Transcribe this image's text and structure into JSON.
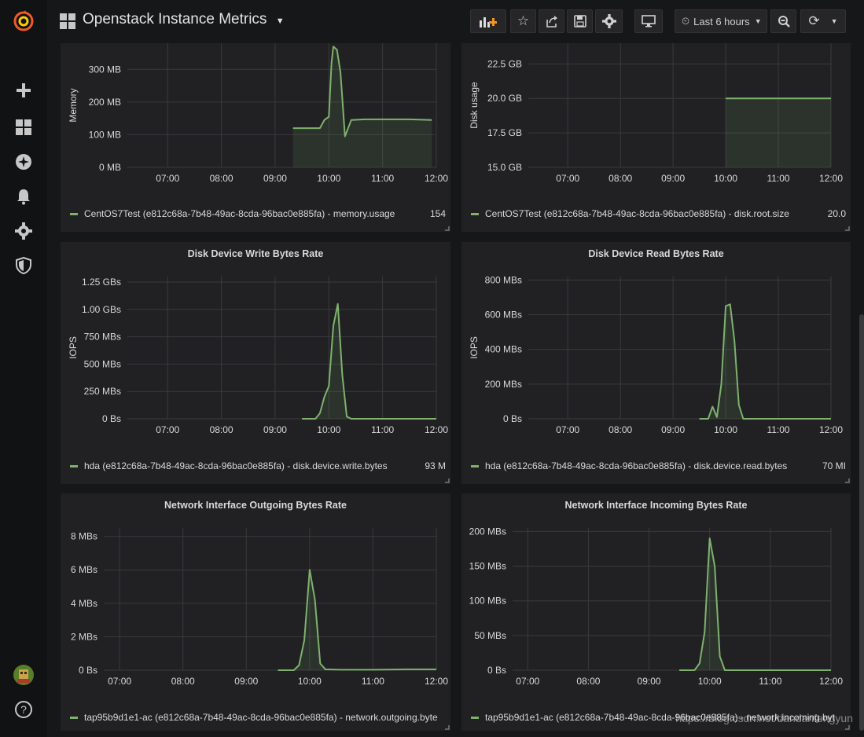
{
  "dashboard": {
    "title": "Openstack Instance Metrics"
  },
  "topbar": {
    "time_range": "Last 6 hours"
  },
  "sidebar": {
    "icons": [
      "grafana-logo-icon",
      "plus-icon",
      "dashboards-icon",
      "explore-icon",
      "alerting-bell-icon",
      "configuration-gear-icon",
      "shield-icon"
    ],
    "help_label": "?"
  },
  "colors": {
    "series": "#7eb26d",
    "background": "#161719",
    "panel": "#212124"
  },
  "watermark": "https://blog.csdn.net/dandanfengyun",
  "panels": [
    {
      "id": "memory",
      "title": "",
      "ylabel": "Memory",
      "yticks": [
        "0 MB",
        "100 MB",
        "200 MB",
        "300 MB"
      ],
      "xticks": [
        "07:00",
        "08:00",
        "09:00",
        "10:00",
        "11:00",
        "12:00"
      ],
      "legend": {
        "label": "CentOS7Test (e812c68a-7b48-49ac-8cda-96bac0e885fa) - memory.usage",
        "value": "154"
      }
    },
    {
      "id": "disk",
      "title": "",
      "ylabel": "Disk usage",
      "yticks": [
        "15.0 GB",
        "17.5 GB",
        "20.0 GB",
        "22.5 GB"
      ],
      "xticks": [
        "07:00",
        "08:00",
        "09:00",
        "10:00",
        "11:00",
        "12:00"
      ],
      "legend": {
        "label": "CentOS7Test (e812c68a-7b48-49ac-8cda-96bac0e885fa) - disk.root.size",
        "value": "20.0"
      }
    },
    {
      "id": "write",
      "title": "Disk Device Write Bytes Rate",
      "ylabel": "IOPS",
      "yticks": [
        "0 Bs",
        "250 MBs",
        "500 MBs",
        "750 MBs",
        "1.00 GBs",
        "1.25 GBs"
      ],
      "xticks": [
        "07:00",
        "08:00",
        "09:00",
        "10:00",
        "11:00",
        "12:00"
      ],
      "legend": {
        "label": "hda (e812c68a-7b48-49ac-8cda-96bac0e885fa) - disk.device.write.bytes",
        "value": "93 M"
      }
    },
    {
      "id": "read",
      "title": "Disk Device Read Bytes Rate",
      "ylabel": "IOPS",
      "yticks": [
        "0 Bs",
        "200 MBs",
        "400 MBs",
        "600 MBs",
        "800 MBs"
      ],
      "xticks": [
        "07:00",
        "08:00",
        "09:00",
        "10:00",
        "11:00",
        "12:00"
      ],
      "legend": {
        "label": "hda (e812c68a-7b48-49ac-8cda-96bac0e885fa) - disk.device.read.bytes",
        "value": "70 MI"
      }
    },
    {
      "id": "netout",
      "title": "Network Interface Outgoing Bytes Rate",
      "ylabel": "",
      "yticks": [
        "0 Bs",
        "2 MBs",
        "4 MBs",
        "6 MBs",
        "8 MBs"
      ],
      "xticks": [
        "07:00",
        "08:00",
        "09:00",
        "10:00",
        "11:00",
        "12:00"
      ],
      "legend": {
        "label": "tap95b9d1e1-ac (e812c68a-7b48-49ac-8cda-96bac0e885fa) - network.outgoing.byte",
        "value": ""
      }
    },
    {
      "id": "netin",
      "title": "Network Interface Incoming Bytes Rate",
      "ylabel": "",
      "yticks": [
        "0 Bs",
        "50 MBs",
        "100 MBs",
        "150 MBs",
        "200 MBs"
      ],
      "xticks": [
        "07:00",
        "08:00",
        "09:00",
        "10:00",
        "11:00",
        "12:00"
      ],
      "legend": {
        "label": "tap95b9d1e1-ac (e812c68a-7b48-49ac-8cda-96bac0e885fa) - network.incoming.byt",
        "value": ""
      }
    }
  ],
  "chart_data": [
    {
      "type": "area",
      "title": "",
      "ylabel": "Memory",
      "x": [
        "09:20",
        "09:50",
        "09:55",
        "10:00",
        "10:03",
        "10:05",
        "10:09",
        "10:13",
        "10:18",
        "10:25",
        "10:40",
        "11:00",
        "11:30",
        "11:55"
      ],
      "series": [
        {
          "values": [
            120,
            120,
            145,
            155,
            320,
            370,
            360,
            290,
            95,
            145,
            147,
            147,
            147,
            145
          ]
        }
      ],
      "ylim": [
        0,
        380
      ]
    },
    {
      "type": "area",
      "title": "",
      "ylabel": "Disk usage",
      "x": [
        "10:00",
        "12:00"
      ],
      "series": [
        {
          "values": [
            20.0,
            20.0
          ]
        }
      ],
      "ylim": [
        15.0,
        24.0
      ]
    },
    {
      "type": "line",
      "title": "Disk Device Write Bytes Rate",
      "ylabel": "IOPS",
      "x": [
        "09:30",
        "09:45",
        "09:50",
        "09:55",
        "10:00",
        "10:05",
        "10:10",
        "10:15",
        "10:20",
        "10:25",
        "10:30",
        "11:00",
        "12:00"
      ],
      "series": [
        {
          "values": [
            0,
            0,
            50,
            200,
            300,
            850,
            1050,
            400,
            20,
            0,
            0,
            0,
            0
          ]
        }
      ],
      "ylim": [
        0,
        1300
      ]
    },
    {
      "type": "line",
      "title": "Disk Device Read Bytes Rate",
      "ylabel": "IOPS",
      "x": [
        "09:30",
        "09:40",
        "09:45",
        "09:50",
        "09:55",
        "10:00",
        "10:05",
        "10:10",
        "10:15",
        "10:20",
        "11:00",
        "12:00"
      ],
      "series": [
        {
          "values": [
            0,
            0,
            70,
            10,
            200,
            650,
            660,
            450,
            80,
            0,
            0,
            0
          ]
        }
      ],
      "ylim": [
        0,
        820
      ]
    },
    {
      "type": "line",
      "title": "Network Interface Outgoing Bytes Rate",
      "ylabel": "",
      "x": [
        "09:30",
        "09:40",
        "09:45",
        "09:50",
        "09:55",
        "10:00",
        "10:05",
        "10:10",
        "10:15",
        "10:30",
        "11:00",
        "11:30",
        "12:00"
      ],
      "series": [
        {
          "values": [
            0,
            0,
            0,
            0.3,
            1.8,
            6.0,
            4.2,
            0.4,
            0.05,
            0.03,
            0.03,
            0.05,
            0.05
          ]
        }
      ],
      "ylim": [
        0,
        8.5
      ]
    },
    {
      "type": "line",
      "title": "Network Interface Incoming Bytes Rate",
      "ylabel": "",
      "x": [
        "09:30",
        "09:45",
        "09:50",
        "09:55",
        "10:00",
        "10:05",
        "10:10",
        "10:15",
        "10:20",
        "11:00",
        "12:00"
      ],
      "series": [
        {
          "values": [
            0,
            0,
            10,
            55,
            190,
            150,
            20,
            0,
            0,
            0,
            0
          ]
        }
      ],
      "ylim": [
        0,
        205
      ]
    }
  ]
}
